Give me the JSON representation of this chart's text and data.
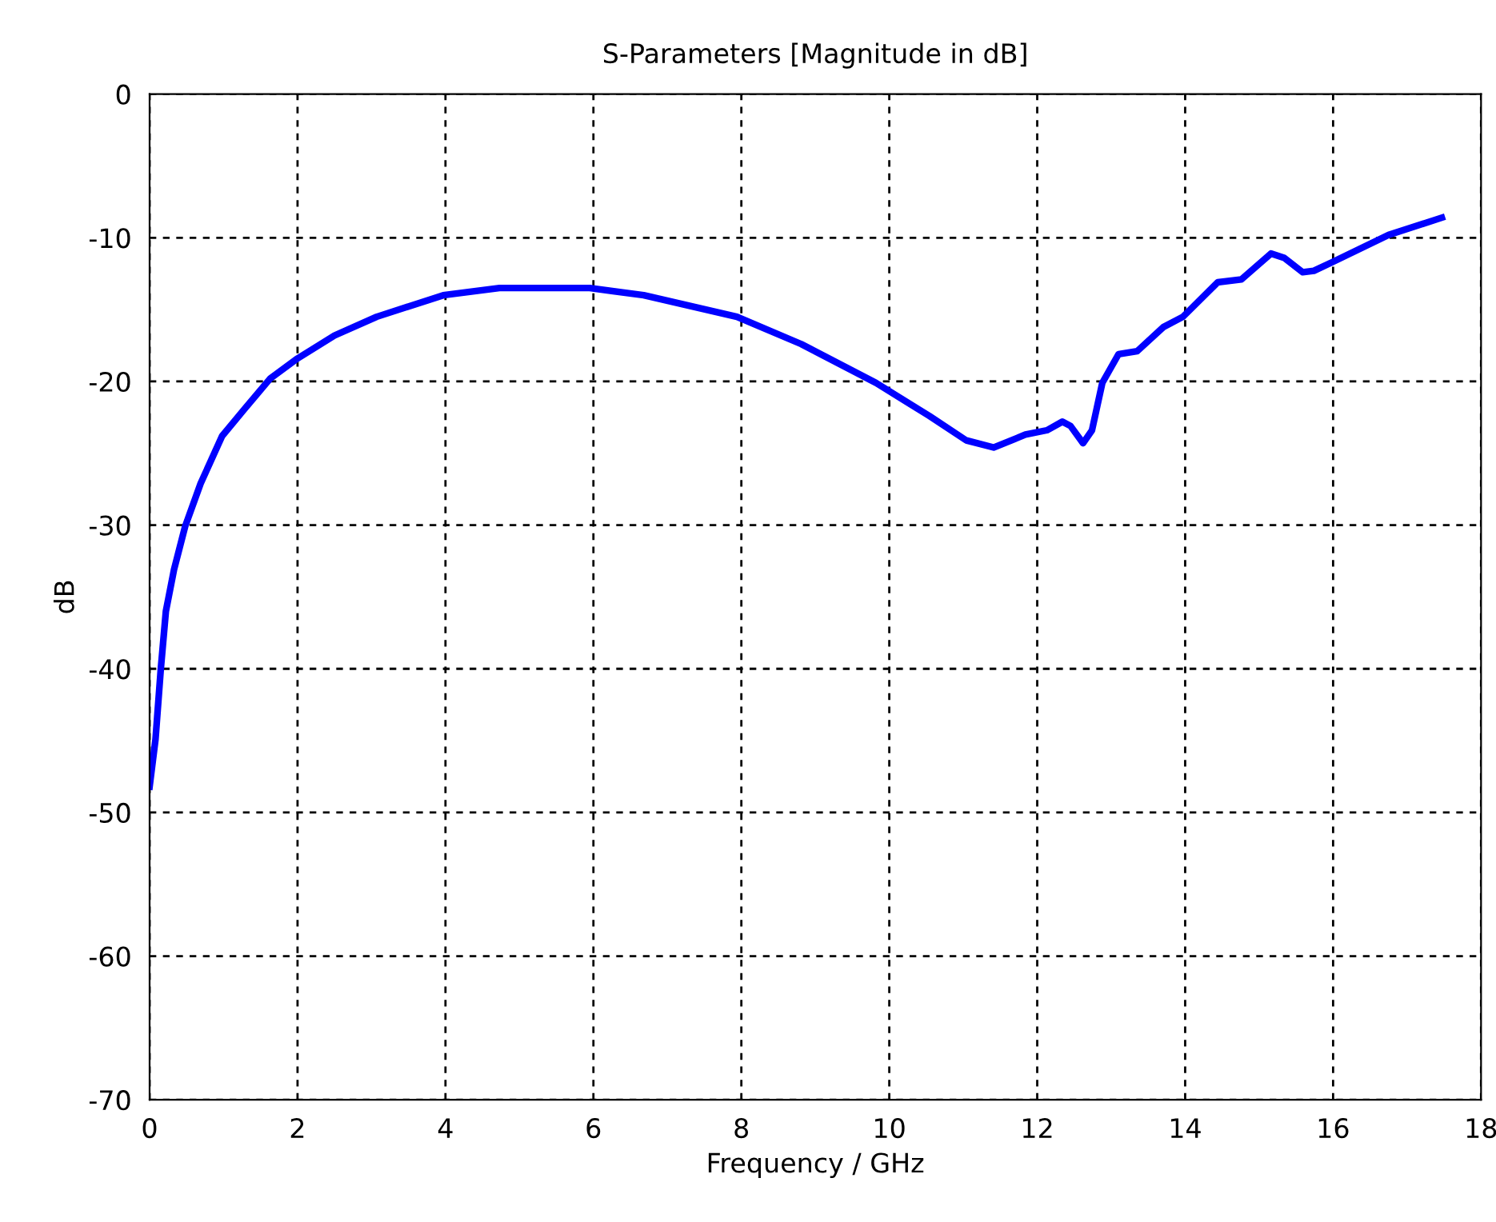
{
  "chart_data": {
    "type": "line",
    "title": "S-Parameters [Magnitude in dB]",
    "xlabel": "Frequency / GHz",
    "ylabel": "dB",
    "xlim": [
      0,
      18
    ],
    "xticks": [
      0,
      2,
      4,
      6,
      8,
      10,
      12,
      14,
      16,
      18
    ],
    "ylim": [
      -70,
      0
    ],
    "yticks": [
      -70,
      -60,
      -50,
      -40,
      -30,
      -20,
      -10,
      0
    ],
    "grid": true,
    "legend": false,
    "marker": "none",
    "line_style": "solid",
    "series": [
      {
        "color": "#0000ff",
        "x": [
          0.0,
          0.08,
          0.15,
          0.22,
          0.33,
          0.48,
          0.69,
          0.98,
          1.27,
          1.63,
          2.0,
          2.5,
          3.07,
          3.97,
          4.73,
          5.95,
          6.68,
          7.94,
          8.81,
          9.82,
          10.54,
          11.04,
          11.41,
          11.84,
          12.13,
          12.34,
          12.45,
          12.62,
          12.74,
          12.88,
          13.1,
          13.35,
          13.71,
          13.97,
          14.44,
          14.76,
          15.16,
          15.34,
          15.59,
          15.74,
          15.99,
          16.75,
          17.47
        ],
        "values": [
          -48.2,
          -44.9,
          -40.1,
          -36.0,
          -33.1,
          -30.1,
          -27.1,
          -23.8,
          -22.0,
          -19.8,
          -18.4,
          -16.8,
          -15.5,
          -14.0,
          -13.5,
          -13.5,
          -14.0,
          -15.5,
          -17.4,
          -20.1,
          -22.4,
          -24.1,
          -24.6,
          -23.7,
          -23.4,
          -22.8,
          -23.1,
          -24.3,
          -23.4,
          -20.1,
          -18.1,
          -17.9,
          -16.2,
          -15.5,
          -13.1,
          -12.9,
          -11.1,
          -11.4,
          -12.4,
          -12.3,
          -11.7,
          -9.8,
          -8.6
        ]
      }
    ]
  }
}
